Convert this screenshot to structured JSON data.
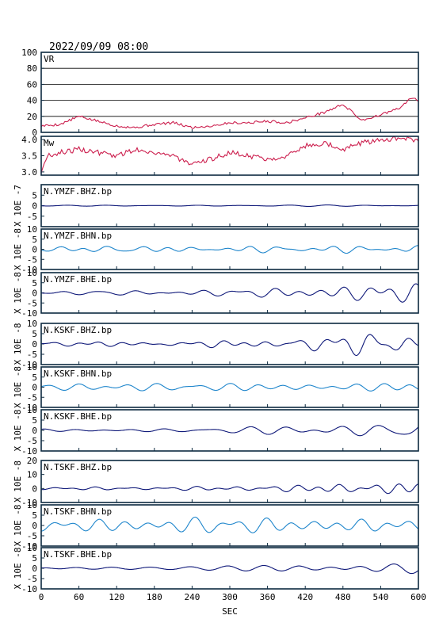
{
  "header": {
    "datetime": "2022/09/09 08:00"
  },
  "colors": {
    "vr": "#cc1f4e",
    "mw": "#cc1f4e",
    "dark_trace": "#101a7a",
    "light_trace": "#1f86cc",
    "frame": "#0d2a40",
    "grid": "#000000"
  },
  "chart_data": {
    "type": "line",
    "x_axis": {
      "label": "SEC",
      "range": [
        0,
        600
      ],
      "ticks": [
        0,
        60,
        120,
        180,
        240,
        300,
        360,
        420,
        480,
        540,
        600
      ]
    },
    "panels": [
      {
        "id": "vr",
        "label": "VR",
        "color": "vr",
        "ylim": [
          0,
          100
        ],
        "ticks": [
          0,
          20,
          40,
          60,
          80,
          100
        ],
        "grid": true,
        "x": [
          0,
          30,
          60,
          90,
          120,
          150,
          180,
          210,
          240,
          270,
          300,
          330,
          360,
          390,
          420,
          450,
          480,
          510,
          540,
          570,
          590,
          600
        ],
        "values": [
          8,
          10,
          20,
          14,
          8,
          6,
          10,
          12,
          6,
          8,
          12,
          12,
          14,
          12,
          18,
          25,
          35,
          15,
          22,
          30,
          44,
          38
        ]
      },
      {
        "id": "mw",
        "label": "Mw",
        "color": "mw",
        "ylim": [
          2.9,
          4.1
        ],
        "ticks": [
          3.0,
          3.5,
          4.0
        ],
        "tick_labels": [
          "3.0",
          "3.5",
          "4.0"
        ],
        "grid": false,
        "x": [
          0,
          10,
          30,
          60,
          90,
          120,
          150,
          180,
          210,
          240,
          270,
          300,
          330,
          360,
          390,
          420,
          450,
          480,
          510,
          540,
          570,
          600
        ],
        "values": [
          3.0,
          3.5,
          3.6,
          3.7,
          3.6,
          3.5,
          3.7,
          3.6,
          3.5,
          3.2,
          3.4,
          3.6,
          3.5,
          3.4,
          3.5,
          3.8,
          3.9,
          3.7,
          3.9,
          4.0,
          4.05,
          3.95
        ]
      },
      {
        "id": "ymzf_bhz",
        "label": "N.YMZF.BHZ.bp",
        "color": "dark_trace",
        "ylim": [
          -10,
          10
        ],
        "ticks": [
          -5,
          0,
          5
        ],
        "tick_labels": [
          "-5",
          "0",
          "5"
        ],
        "ylabel": "X 10E -7",
        "amp": 0.25,
        "growth": 0.2,
        "seed": 11
      },
      {
        "id": "ymzf_bhn",
        "label": "N.YMZF.BHN.bp",
        "color": "light_trace",
        "ylim": [
          -10,
          10
        ],
        "ticks": [
          -10,
          -5,
          0,
          5,
          10
        ],
        "tick_labels": [
          "-10",
          "-5",
          "0",
          "5",
          "10"
        ],
        "ylabel": "X 10E -8",
        "amp": 1.6,
        "growth": 0.2,
        "seed": 23
      },
      {
        "id": "ymzf_bhe",
        "label": "N.YMZF.BHE.bp",
        "color": "dark_trace",
        "ylim": [
          -10,
          10
        ],
        "ticks": [
          -10,
          -5,
          0,
          5,
          10
        ],
        "tick_labels": [
          "-10",
          "-5",
          "0",
          "5",
          "10"
        ],
        "ylabel": "X 10E -8",
        "amp": 1.2,
        "growth": 2.0,
        "seed": 37
      },
      {
        "id": "kskf_bhz",
        "label": "N.KSKF.BHZ.bp",
        "color": "dark_trace",
        "ylim": [
          -10,
          10
        ],
        "ticks": [
          -10,
          -5,
          0,
          5,
          10
        ],
        "tick_labels": [
          "-10",
          "-5",
          "0",
          "5",
          "10"
        ],
        "ylabel": "X 10E -8",
        "amp": 1.1,
        "growth": 2.0,
        "seed": 41
      },
      {
        "id": "kskf_bhn",
        "label": "N.KSKF.BHN.bp",
        "color": "light_trace",
        "ylim": [
          -10,
          10
        ],
        "ticks": [
          -10,
          -5,
          0,
          5,
          10
        ],
        "tick_labels": [
          "-10",
          "-5",
          "0",
          "5",
          "10"
        ],
        "ylabel": "X 10E -8",
        "amp": 2.0,
        "growth": 0.3,
        "seed": 53
      },
      {
        "id": "kskf_bhe",
        "label": "N.KSKF.BHE.bp",
        "color": "dark_trace",
        "ylim": [
          -10,
          10
        ],
        "ticks": [
          -10,
          -5,
          0,
          5,
          10
        ],
        "tick_labels": [
          "-10",
          "-5",
          "0",
          "5",
          "10"
        ],
        "ylabel": "X 10E -8",
        "amp": 1.0,
        "growth": 2.2,
        "seed": 67
      },
      {
        "id": "tskf_bhz",
        "label": "N.TSKF.BHZ.bp",
        "color": "dark_trace",
        "ylim": [
          -10,
          20
        ],
        "ticks": [
          -10,
          0,
          10,
          20
        ],
        "tick_labels": [
          "-10",
          "0",
          "10",
          "20"
        ],
        "ylabel": "X 10E -8",
        "amp": 0.8,
        "growth": 2.5,
        "seed": 71
      },
      {
        "id": "tskf_bhn",
        "label": "N.TSKF.BHN.bp",
        "color": "light_trace",
        "ylim": [
          -10,
          10
        ],
        "ticks": [
          -10,
          -5,
          0,
          5,
          10
        ],
        "tick_labels": [
          "-10",
          "-5",
          "0",
          "5",
          "10"
        ],
        "ylabel": "X 10E -8",
        "amp": 2.2,
        "growth": 0.4,
        "seed": 83
      },
      {
        "id": "tskf_bhe",
        "label": "N.TSKF.BHE.bp",
        "color": "dark_trace",
        "ylim": [
          -10,
          10
        ],
        "ticks": [
          -10,
          -5,
          0,
          5,
          10
        ],
        "tick_labels": [
          "-10",
          "-5",
          "0",
          "5",
          "10"
        ],
        "ylabel": "X 10E -8",
        "amp": 0.9,
        "growth": 1.8,
        "seed": 97
      }
    ]
  }
}
